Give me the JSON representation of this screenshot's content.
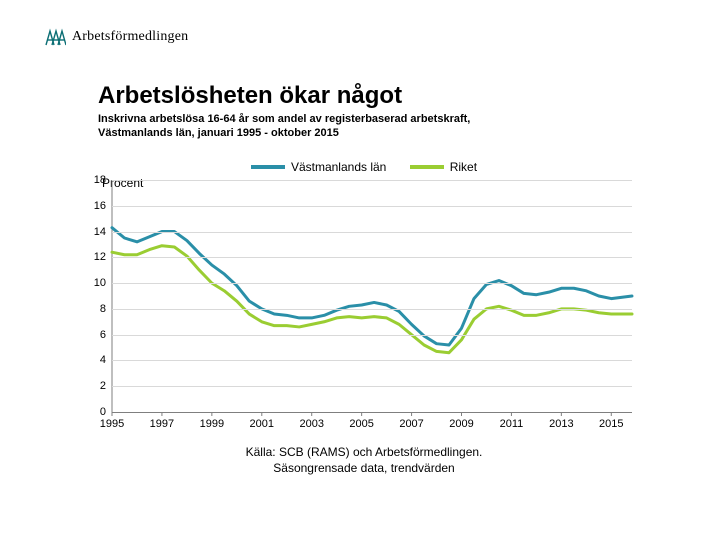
{
  "logo": {
    "text": "Arbetsförmedlingen",
    "icon_color": "#0b6e74"
  },
  "title": "Arbetslösheten ökar något",
  "subtitle_line1": "Inskrivna arbetslösa 16-64 år som andel av registerbaserad arbetskraft,",
  "subtitle_line2": "Västmanlands län, januari 1995 - oktober 2015",
  "chart": {
    "type": "line",
    "y_unit_label": "Procent",
    "legend": [
      {
        "label": "Västmanlands län",
        "color": "#2a8fa8"
      },
      {
        "label": "Riket",
        "color": "#9acd32"
      }
    ],
    "x_ticks": [
      1995,
      1997,
      1999,
      2001,
      2003,
      2005,
      2007,
      2009,
      2011,
      2013,
      2015
    ],
    "y_ticks": [
      0,
      2,
      4,
      6,
      8,
      10,
      12,
      14,
      16,
      18
    ],
    "xlim": [
      1995,
      2015.83
    ],
    "ylim": [
      0,
      18
    ],
    "grid_color": "#d9d9d9",
    "axis_color": "#7f7f7f",
    "line_width": 3,
    "series": [
      {
        "name": "Riket",
        "color": "#9acd32",
        "points": [
          [
            1995.0,
            12.4
          ],
          [
            1995.5,
            12.2
          ],
          [
            1996.0,
            12.2
          ],
          [
            1996.5,
            12.6
          ],
          [
            1997.0,
            12.9
          ],
          [
            1997.5,
            12.8
          ],
          [
            1998.0,
            12.1
          ],
          [
            1998.5,
            11.0
          ],
          [
            1999.0,
            10.0
          ],
          [
            1999.5,
            9.4
          ],
          [
            2000.0,
            8.6
          ],
          [
            2000.5,
            7.6
          ],
          [
            2001.0,
            7.0
          ],
          [
            2001.5,
            6.7
          ],
          [
            2002.0,
            6.7
          ],
          [
            2002.5,
            6.6
          ],
          [
            2003.0,
            6.8
          ],
          [
            2003.5,
            7.0
          ],
          [
            2004.0,
            7.3
          ],
          [
            2004.5,
            7.4
          ],
          [
            2005.0,
            7.3
          ],
          [
            2005.5,
            7.4
          ],
          [
            2006.0,
            7.3
          ],
          [
            2006.5,
            6.8
          ],
          [
            2007.0,
            6.0
          ],
          [
            2007.5,
            5.2
          ],
          [
            2008.0,
            4.7
          ],
          [
            2008.5,
            4.6
          ],
          [
            2009.0,
            5.6
          ],
          [
            2009.5,
            7.2
          ],
          [
            2010.0,
            8.0
          ],
          [
            2010.5,
            8.2
          ],
          [
            2011.0,
            7.9
          ],
          [
            2011.5,
            7.5
          ],
          [
            2012.0,
            7.5
          ],
          [
            2012.5,
            7.7
          ],
          [
            2013.0,
            8.0
          ],
          [
            2013.5,
            8.0
          ],
          [
            2014.0,
            7.9
          ],
          [
            2014.5,
            7.7
          ],
          [
            2015.0,
            7.6
          ],
          [
            2015.83,
            7.6
          ]
        ]
      },
      {
        "name": "Västmanlands län",
        "color": "#2a8fa8",
        "points": [
          [
            1995.0,
            14.3
          ],
          [
            1995.5,
            13.5
          ],
          [
            1996.0,
            13.2
          ],
          [
            1996.5,
            13.6
          ],
          [
            1997.0,
            14.0
          ],
          [
            1997.5,
            14.0
          ],
          [
            1998.0,
            13.3
          ],
          [
            1998.5,
            12.3
          ],
          [
            1999.0,
            11.4
          ],
          [
            1999.5,
            10.7
          ],
          [
            2000.0,
            9.8
          ],
          [
            2000.5,
            8.6
          ],
          [
            2001.0,
            8.0
          ],
          [
            2001.5,
            7.6
          ],
          [
            2002.0,
            7.5
          ],
          [
            2002.5,
            7.3
          ],
          [
            2003.0,
            7.3
          ],
          [
            2003.5,
            7.5
          ],
          [
            2004.0,
            7.9
          ],
          [
            2004.5,
            8.2
          ],
          [
            2005.0,
            8.3
          ],
          [
            2005.5,
            8.5
          ],
          [
            2006.0,
            8.3
          ],
          [
            2006.5,
            7.8
          ],
          [
            2007.0,
            6.8
          ],
          [
            2007.5,
            5.9
          ],
          [
            2008.0,
            5.3
          ],
          [
            2008.5,
            5.2
          ],
          [
            2009.0,
            6.5
          ],
          [
            2009.5,
            8.8
          ],
          [
            2010.0,
            9.9
          ],
          [
            2010.5,
            10.2
          ],
          [
            2011.0,
            9.8
          ],
          [
            2011.5,
            9.2
          ],
          [
            2012.0,
            9.1
          ],
          [
            2012.5,
            9.3
          ],
          [
            2013.0,
            9.6
          ],
          [
            2013.5,
            9.6
          ],
          [
            2014.0,
            9.4
          ],
          [
            2014.5,
            9.0
          ],
          [
            2015.0,
            8.8
          ],
          [
            2015.83,
            9.0
          ]
        ]
      }
    ]
  },
  "source_line1": "Källa: SCB (RAMS) och Arbetsförmedlingen.",
  "source_line2": "Säsongrensade data, trendvärden"
}
